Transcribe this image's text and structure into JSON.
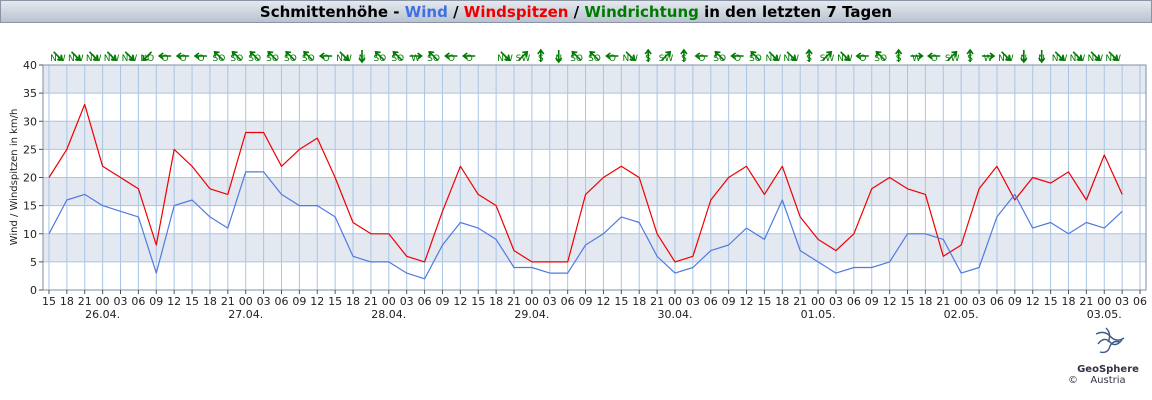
{
  "chart_data": {
    "type": "line",
    "title_parts": [
      {
        "text": "Schmittenhöhe - ",
        "color": "#000000"
      },
      {
        "text": "Wind",
        "color": "#3f6fe0"
      },
      {
        "text": " / ",
        "color": "#000000"
      },
      {
        "text": "Windspitzen",
        "color": "#ee0000"
      },
      {
        "text": " / ",
        "color": "#000000"
      },
      {
        "text": "Windrichtung",
        "color": "#007a00"
      },
      {
        "text": " in den letzten 7 Tagen",
        "color": "#000000"
      }
    ],
    "y_label": "Wind / Windspitzen in km/h",
    "xlim": [
      -1,
      184
    ],
    "ylim": [
      0,
      40
    ],
    "yticks": [
      0,
      5,
      10,
      15,
      20,
      25,
      30,
      35,
      40
    ],
    "grid": true,
    "xticks": [
      {
        "value": 0,
        "label": "15"
      },
      {
        "value": 3,
        "label": "18"
      },
      {
        "value": 6,
        "label": "21"
      },
      {
        "value": 9,
        "label": "00"
      },
      {
        "value": 12,
        "label": "03"
      },
      {
        "value": 15,
        "label": "06"
      },
      {
        "value": 18,
        "label": "09"
      },
      {
        "value": 21,
        "label": "12"
      },
      {
        "value": 24,
        "label": "15"
      },
      {
        "value": 27,
        "label": "18"
      },
      {
        "value": 30,
        "label": "21"
      },
      {
        "value": 33,
        "label": "00"
      },
      {
        "value": 36,
        "label": "03"
      },
      {
        "value": 39,
        "label": "06"
      },
      {
        "value": 42,
        "label": "09"
      },
      {
        "value": 45,
        "label": "12"
      },
      {
        "value": 48,
        "label": "15"
      },
      {
        "value": 51,
        "label": "18"
      },
      {
        "value": 54,
        "label": "21"
      },
      {
        "value": 57,
        "label": "00"
      },
      {
        "value": 60,
        "label": "03"
      },
      {
        "value": 63,
        "label": "06"
      },
      {
        "value": 66,
        "label": "09"
      },
      {
        "value": 69,
        "label": "12"
      },
      {
        "value": 72,
        "label": "15"
      },
      {
        "value": 75,
        "label": "18"
      },
      {
        "value": 78,
        "label": "21"
      },
      {
        "value": 81,
        "label": "00"
      },
      {
        "value": 84,
        "label": "03"
      },
      {
        "value": 87,
        "label": "06"
      },
      {
        "value": 90,
        "label": "09"
      },
      {
        "value": 93,
        "label": "12"
      },
      {
        "value": 96,
        "label": "15"
      },
      {
        "value": 99,
        "label": "18"
      },
      {
        "value": 102,
        "label": "21"
      },
      {
        "value": 105,
        "label": "00"
      },
      {
        "value": 108,
        "label": "03"
      },
      {
        "value": 111,
        "label": "06"
      },
      {
        "value": 114,
        "label": "09"
      },
      {
        "value": 117,
        "label": "12"
      },
      {
        "value": 120,
        "label": "15"
      },
      {
        "value": 123,
        "label": "18"
      },
      {
        "value": 126,
        "label": "21"
      },
      {
        "value": 129,
        "label": "00"
      },
      {
        "value": 132,
        "label": "03"
      },
      {
        "value": 135,
        "label": "06"
      },
      {
        "value": 138,
        "label": "09"
      },
      {
        "value": 141,
        "label": "12"
      },
      {
        "value": 144,
        "label": "15"
      },
      {
        "value": 147,
        "label": "18"
      },
      {
        "value": 150,
        "label": "21"
      },
      {
        "value": 153,
        "label": "00"
      },
      {
        "value": 156,
        "label": "03"
      },
      {
        "value": 159,
        "label": "06"
      },
      {
        "value": 162,
        "label": "09"
      },
      {
        "value": 165,
        "label": "12"
      },
      {
        "value": 168,
        "label": "15"
      },
      {
        "value": 171,
        "label": "18"
      },
      {
        "value": 174,
        "label": "21"
      },
      {
        "value": 177,
        "label": "00"
      },
      {
        "value": 180,
        "label": "03"
      },
      {
        "value": 183,
        "label": "06"
      }
    ],
    "date_labels": [
      {
        "value": 9,
        "label": "26.04."
      },
      {
        "value": 33,
        "label": "27.04."
      },
      {
        "value": 57,
        "label": "28.04."
      },
      {
        "value": 81,
        "label": "29.04."
      },
      {
        "value": 105,
        "label": "30.04."
      },
      {
        "value": 129,
        "label": "01.05."
      },
      {
        "value": 153,
        "label": "02.05."
      },
      {
        "value": 177,
        "label": "03.05."
      }
    ],
    "x": [
      0,
      3,
      6,
      9,
      12,
      15,
      18,
      21,
      24,
      27,
      30,
      33,
      36,
      39,
      42,
      45,
      48,
      51,
      54,
      57,
      60,
      63,
      66,
      69,
      72,
      75,
      78,
      81,
      84,
      87,
      90,
      93,
      96,
      99,
      102,
      105,
      108,
      111,
      114,
      117,
      120,
      123,
      126,
      129,
      132,
      135,
      138,
      141,
      144,
      147,
      150,
      153,
      156,
      159,
      162,
      165,
      168,
      171,
      174,
      177,
      180
    ],
    "series": [
      {
        "name": "Windspitzen",
        "color": "#ee0000",
        "values": [
          20,
          25,
          33,
          22,
          20,
          18,
          8,
          25,
          22,
          18,
          17,
          28,
          28,
          22,
          25,
          27,
          20,
          12,
          10,
          10,
          6,
          5,
          14,
          22,
          17,
          15,
          7,
          5,
          5,
          5,
          17,
          20,
          22,
          20,
          10,
          5,
          6,
          16,
          20,
          22,
          17,
          22,
          13,
          9,
          7,
          10,
          18,
          20,
          18,
          17,
          6,
          8,
          18,
          22,
          16,
          20,
          19,
          21,
          16,
          24,
          17
        ]
      },
      {
        "name": "Wind",
        "color": "#4f7be0",
        "values": [
          10,
          16,
          17,
          15,
          14,
          13,
          3,
          15,
          16,
          13,
          11,
          21,
          21,
          17,
          15,
          15,
          13,
          6,
          5,
          5,
          3,
          2,
          8,
          12,
          11,
          9,
          4,
          4,
          3,
          3,
          8,
          10,
          13,
          12,
          6,
          3,
          4,
          7,
          8,
          11,
          9,
          16,
          7,
          5,
          3,
          4,
          4,
          5,
          10,
          10,
          9,
          3,
          4,
          13,
          17,
          11,
          12,
          10,
          12,
          11,
          14
        ]
      }
    ],
    "direction_color": "#007a00",
    "direction_x": [
      1.5,
      4.5,
      7.5,
      10.5,
      13.5,
      16.5,
      19.5,
      22.5,
      25.5,
      28.5,
      31.5,
      34.5,
      37.5,
      40.5,
      43.5,
      46.5,
      49.5,
      52.5,
      55.5,
      58.5,
      61.5,
      64.5,
      67.5,
      70.5,
      76.5,
      79.5,
      82.5,
      85.5,
      88.5,
      91.5,
      94.5,
      97.5,
      100.5,
      103.5,
      106.5,
      109.5,
      112.5,
      115.5,
      118.5,
      121.5,
      124.5,
      127.5,
      130.5,
      133.5,
      136.5,
      139.5,
      142.5,
      145.5,
      148.5,
      151.5,
      154.5,
      157.5,
      160.5,
      163.5,
      166.5,
      169.5,
      172.5,
      175.5,
      178.5
    ],
    "directions": [
      "NW",
      "NW",
      "NW",
      "NW",
      "NW",
      "NO",
      "O",
      "O",
      "O",
      "SO",
      "SO",
      "SO",
      "SO",
      "SO",
      "SO",
      "O",
      "NW",
      "N",
      "SO",
      "SO",
      "W",
      "SO",
      "O",
      "O",
      "NW",
      "SW",
      "S",
      "N",
      "SO",
      "SO",
      "O",
      "NW",
      "S",
      "SW",
      "S",
      "O",
      "SO",
      "O",
      "SO",
      "NW",
      "NW",
      "S",
      "SW",
      "NW",
      "O",
      "SO",
      "S",
      "W",
      "O",
      "SW",
      "S",
      "W",
      "NW",
      "N",
      "N",
      "NW",
      "NW",
      "NW",
      "NW"
    ]
  },
  "footer": {
    "logo_name": "GeoSphere",
    "logo_sub": "Austria",
    "copyright": "©"
  }
}
